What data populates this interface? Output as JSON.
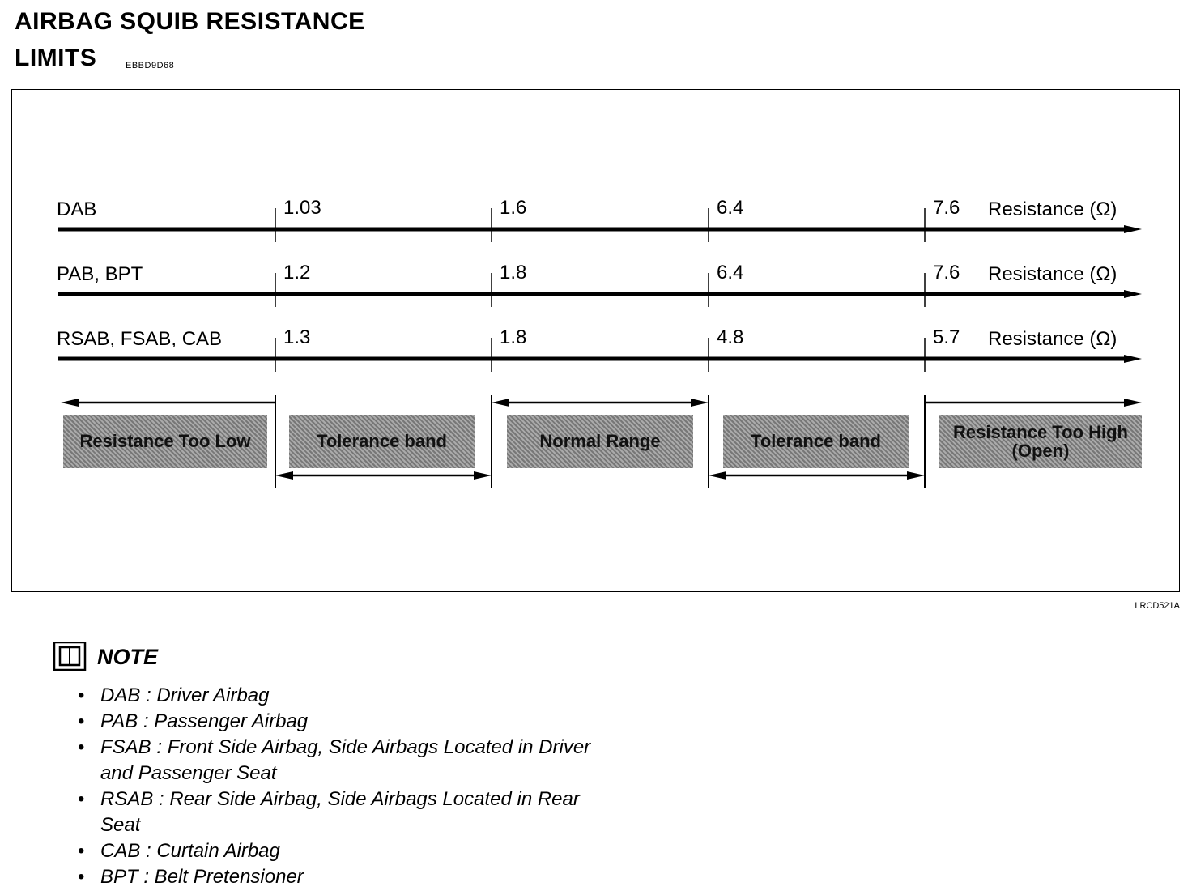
{
  "title_line1": "AIRBAG SQUIB RESISTANCE",
  "title_line2": "LIMITS",
  "doc_code": "EBBD9D68",
  "figure_id": "LRCD521A",
  "rows": [
    {
      "label": "DAB",
      "values": [
        "1.03",
        "1.6",
        "6.4",
        "7.6"
      ],
      "unit": "Resistance (Ω)"
    },
    {
      "label": "PAB, BPT",
      "values": [
        "1.2",
        "1.8",
        "6.4",
        "7.6"
      ],
      "unit": "Resistance (Ω)"
    },
    {
      "label": "RSAB, FSAB, CAB",
      "values": [
        "1.3",
        "1.8",
        "4.8",
        "5.7"
      ],
      "unit": "Resistance (Ω)"
    }
  ],
  "zones": [
    "Resistance Too Low",
    "Tolerance band",
    "Normal Range",
    "Tolerance band",
    "Resistance Too High (Open)"
  ],
  "note": {
    "icon": "book-icon",
    "title": "NOTE",
    "items": [
      "DAB : Driver Airbag",
      "PAB : Passenger Airbag",
      "FSAB : Front Side Airbag, Side Airbags Located in Driver and Passenger Seat",
      "RSAB : Rear Side Airbag, Side Airbags Located in Rear Seat",
      "CAB : Curtain Airbag",
      "BPT : Belt Pretensioner"
    ]
  }
}
